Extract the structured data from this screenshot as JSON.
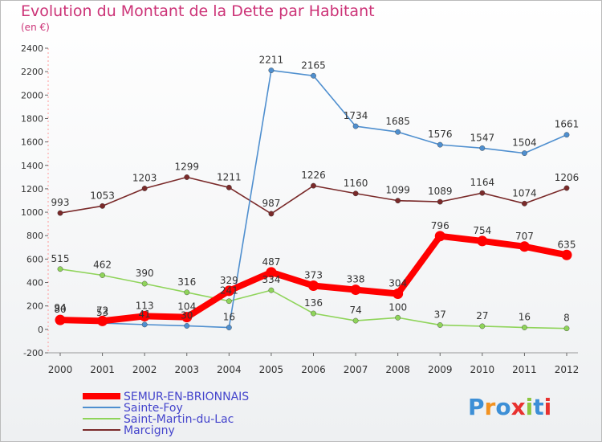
{
  "title": "Evolution du Montant de la Dette par Habitant",
  "subtitle": "(en €)",
  "logo": "Proxiti",
  "chart_data": {
    "type": "line",
    "x": [
      "2000",
      "2001",
      "2002",
      "2003",
      "2004",
      "2005",
      "2006",
      "2007",
      "2008",
      "2009",
      "2010",
      "2011",
      "2012"
    ],
    "ylim": [
      -200,
      2400
    ],
    "yticks": [
      -200,
      0,
      200,
      400,
      600,
      800,
      1000,
      1200,
      1400,
      1600,
      1800,
      2000,
      2200,
      2400
    ],
    "grid": false,
    "legend_position": "bottom-left",
    "series": [
      {
        "name": "Marcigny",
        "color": "#7a2a2a",
        "values": [
          993,
          1053,
          1203,
          1299,
          1211,
          987,
          1226,
          1160,
          1099,
          1089,
          1164,
          1074,
          1206
        ]
      },
      {
        "name": "Saint-Martin-du-Lac",
        "color": "#8fd45a",
        "values": [
          515,
          462,
          390,
          316,
          241,
          334,
          136,
          74,
          100,
          37,
          27,
          16,
          8
        ]
      },
      {
        "name": "Sainte-Foy",
        "color": "#4f8fcf",
        "values": [
          94,
          53,
          41,
          30,
          16,
          2211,
          2165,
          1734,
          1685,
          1576,
          1547,
          1504,
          1661
        ]
      },
      {
        "name": "SEMUR-EN-BRIONNAIS",
        "color": "#ff0000",
        "values": [
          80,
          72,
          113,
          104,
          329,
          487,
          373,
          338,
          304,
          796,
          754,
          707,
          635
        ]
      }
    ]
  }
}
